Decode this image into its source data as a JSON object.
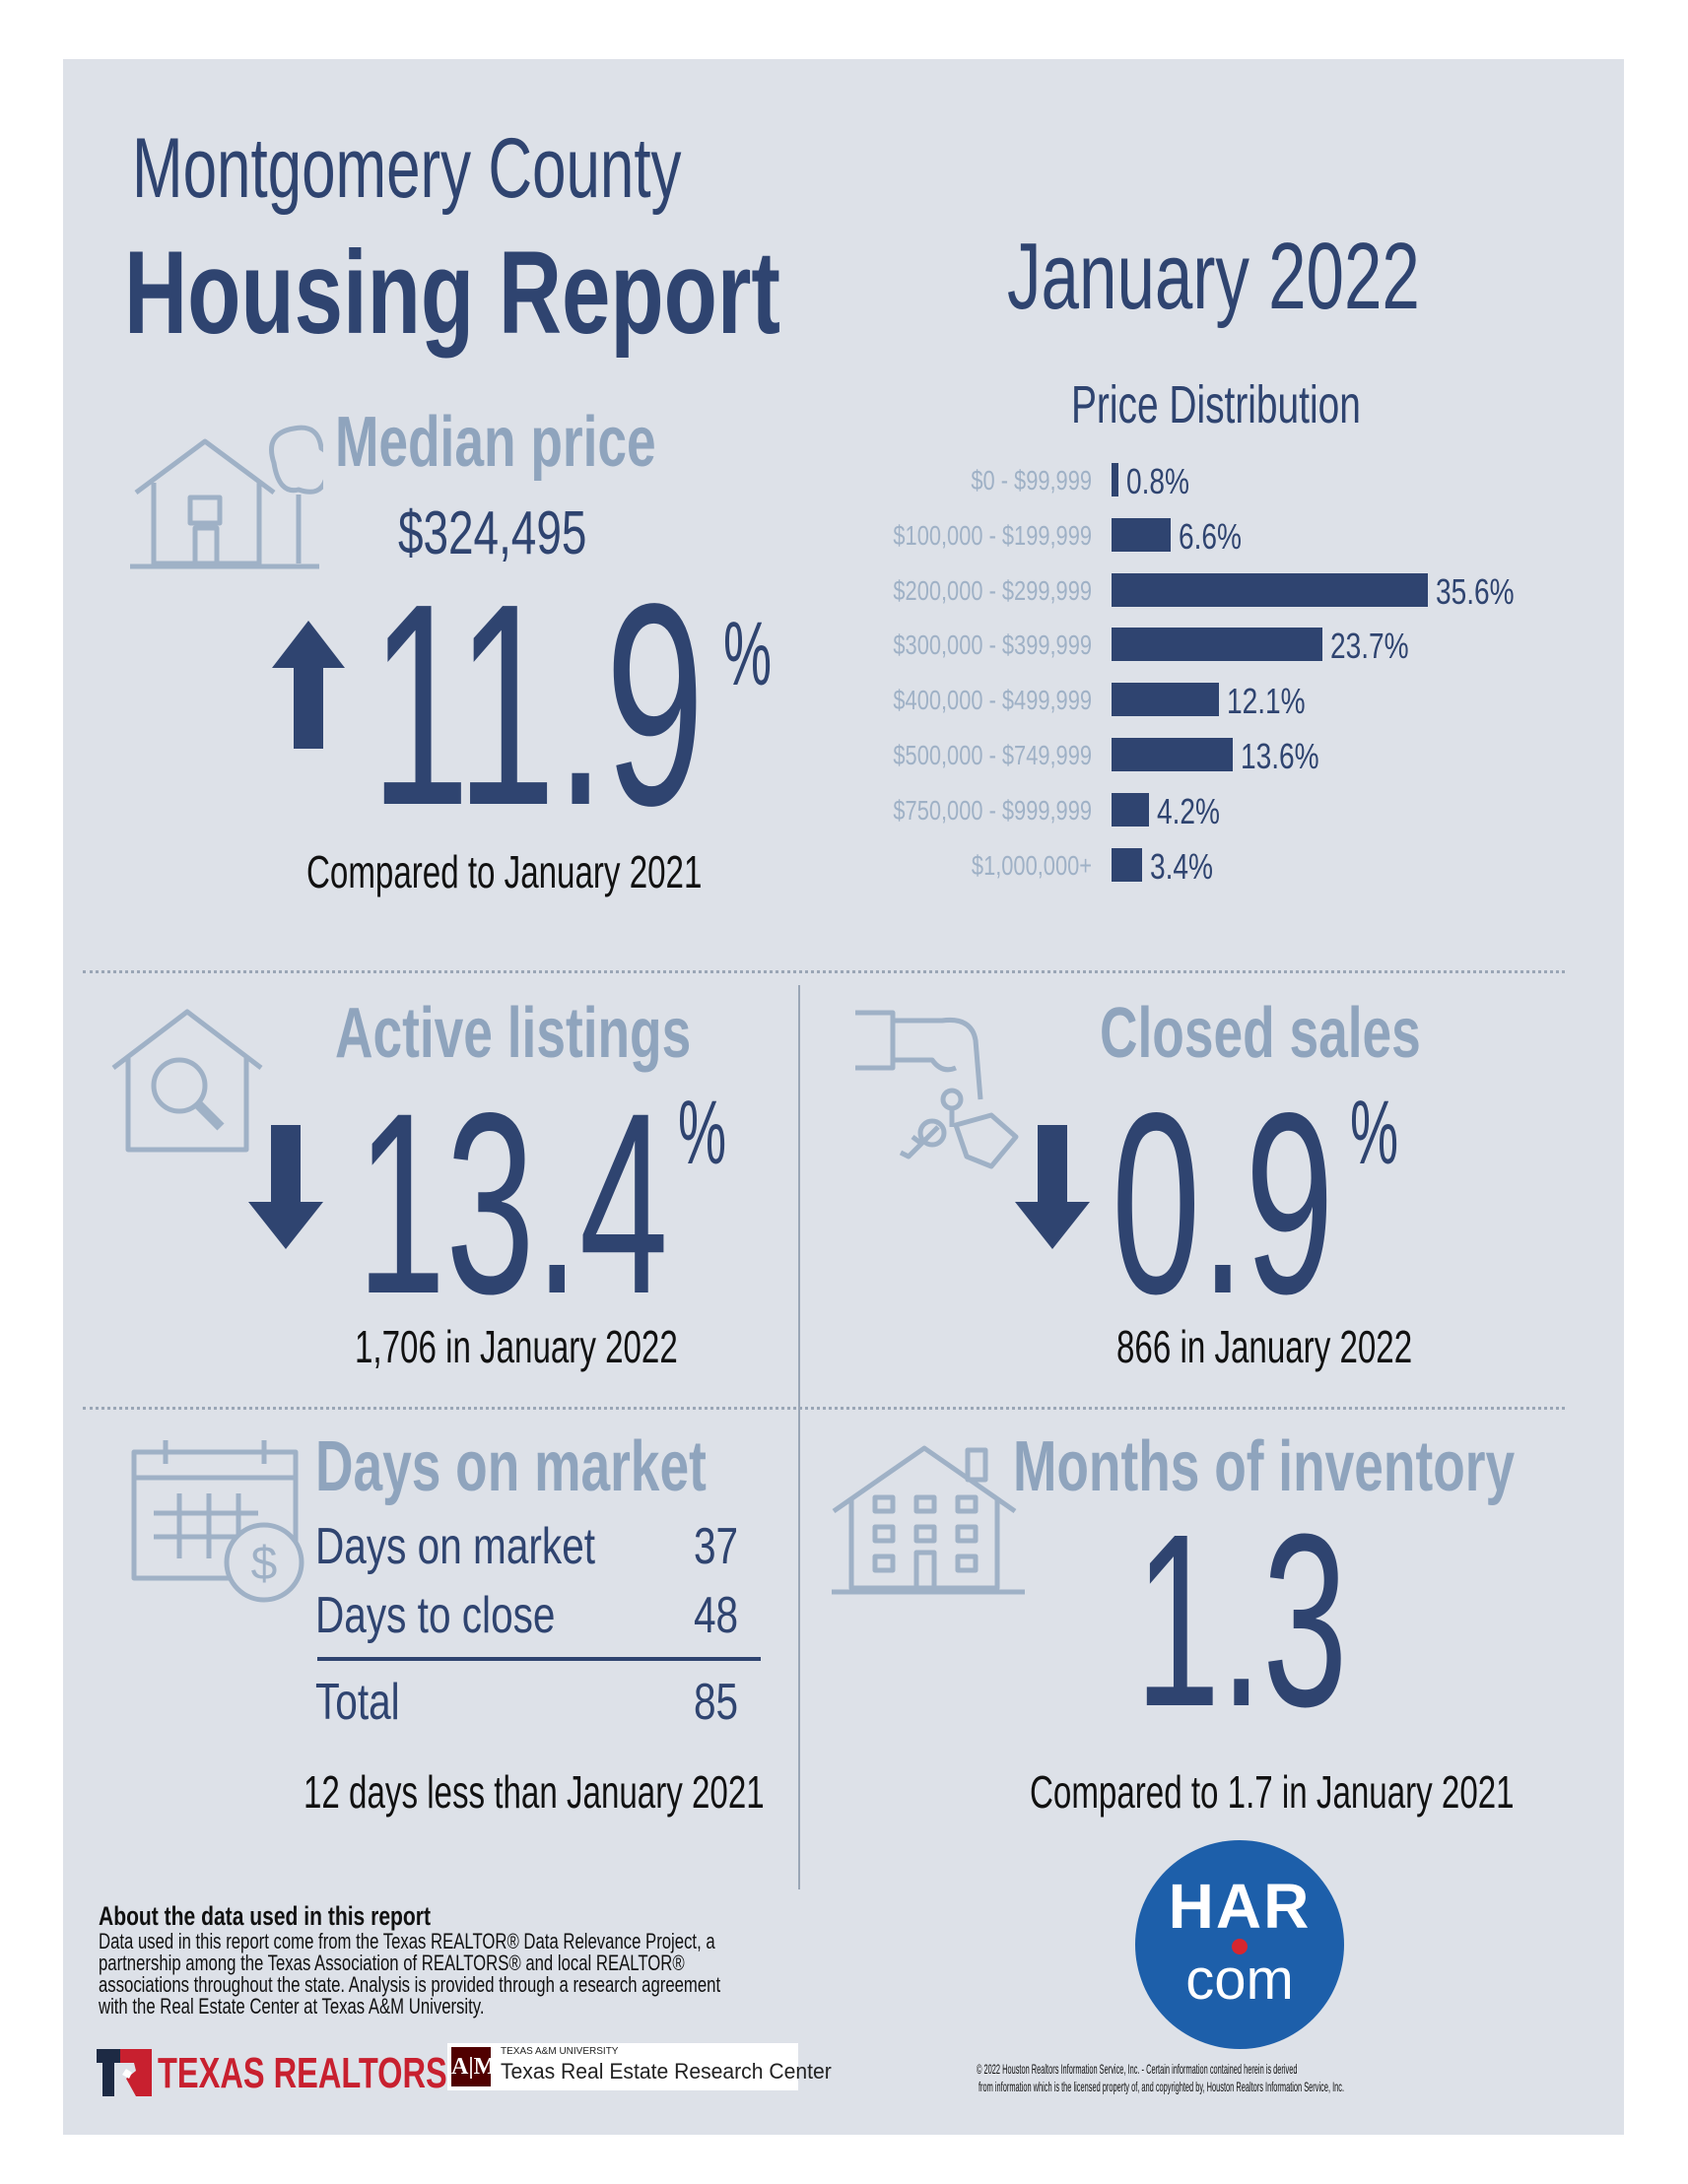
{
  "header": {
    "county": "Montgomery County",
    "title": "Housing Report",
    "period": "January 2022"
  },
  "median_price": {
    "heading": "Median price",
    "value": "$324,495",
    "change": "11.9",
    "unit": "%",
    "direction": "up",
    "note": "Compared to January 2021"
  },
  "price_distribution": {
    "heading": "Price Distribution",
    "chart_data": {
      "type": "bar",
      "title": "Price Distribution",
      "categories": [
        "$0 - $99,999",
        "$100,000 - $199,999",
        "$200,000 - $299,999",
        "$300,000 - $399,999",
        "$400,000 - $499,999",
        "$500,000 - $749,999",
        "$750,000 - $999,999",
        "$1,000,000+"
      ],
      "values": [
        0.8,
        6.6,
        35.6,
        23.7,
        12.1,
        13.6,
        4.2,
        3.4
      ],
      "labels": [
        "0.8%",
        "6.6%",
        "35.6%",
        "23.7%",
        "12.1%",
        "13.6%",
        "4.2%",
        "3.4%"
      ]
    }
  },
  "active_listings": {
    "heading": "Active listings",
    "change": "13.4",
    "unit": "%",
    "direction": "down",
    "note": "1,706 in January 2022"
  },
  "closed_sales": {
    "heading": "Closed sales",
    "change": "0.9",
    "unit": "%",
    "direction": "down",
    "note": "866 in January 2022"
  },
  "days_on_market": {
    "heading": "Days on market",
    "rows": [
      {
        "label": "Days on market",
        "value": "37"
      },
      {
        "label": "Days to close",
        "value": "48"
      }
    ],
    "total_label": "Total",
    "total_value": "85",
    "note": "12 days less than January 2021"
  },
  "months_inventory": {
    "heading": "Months of inventory",
    "value": "1.3",
    "note": "Compared to 1.7 in January 2021"
  },
  "about": {
    "heading": "About the data used in this report",
    "body": "Data used in this report come from the Texas REALTOR® Data Relevance Project, a partnership among the Texas Association of REALTORS® and local REALTOR® associations throughout the state. Analysis is provided through a research agreement with the Real Estate Center at Texas A&M University."
  },
  "logos": {
    "texas_realtors": "TEXAS REALTORS",
    "tamu_small": "TEXAS A&M UNIVERSITY",
    "tamu_center": "Texas Real Estate Research Center",
    "har_top": "HAR",
    "har_bottom": "com"
  },
  "copyright": {
    "line1": "© 2022 Houston Realtors Information Service, Inc. - Certain information contained herein is derived",
    "line2": "from information which is the licensed property of, and copyrighted by, Houston Realtors Information Service, Inc."
  },
  "colors": {
    "navy": "#2f4470",
    "muted": "#8fa4bd",
    "panel": "#dde1e8",
    "har_blue": "#1d5faa",
    "har_red": "#d6262f"
  }
}
